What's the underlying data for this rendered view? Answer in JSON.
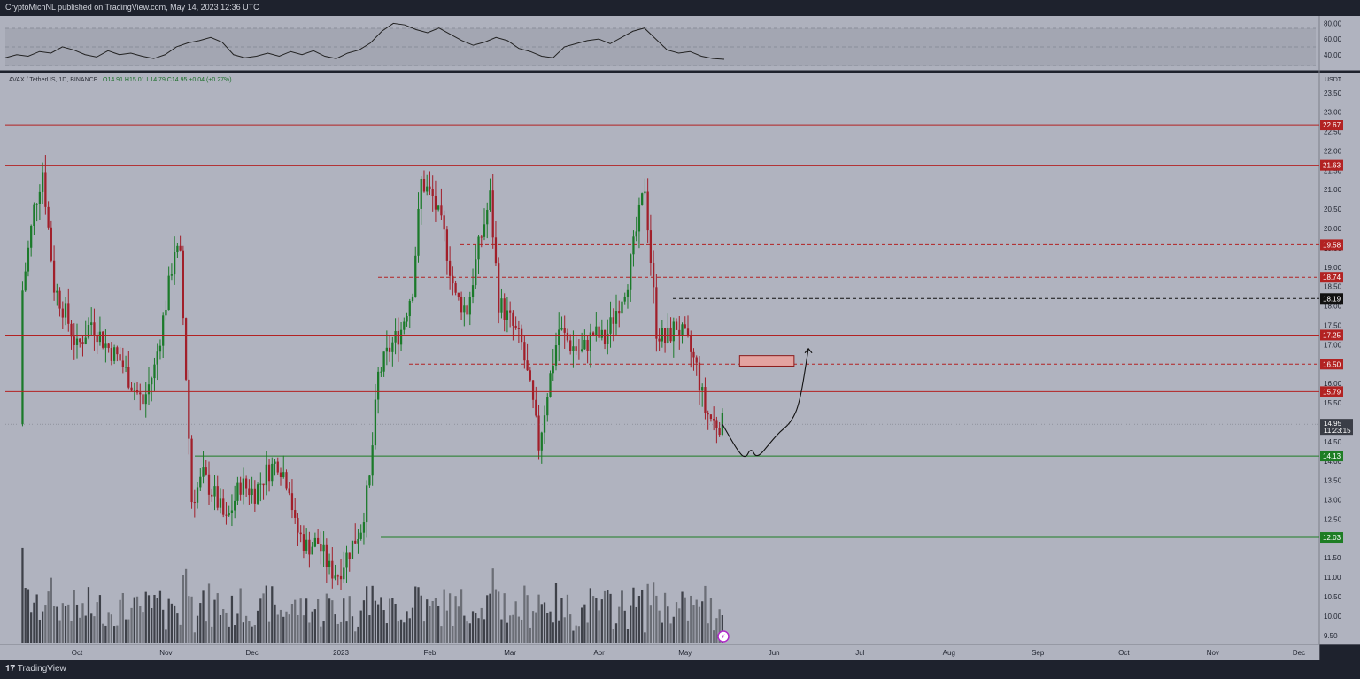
{
  "header": {
    "published": "CryptoMichNL published on TradingView.com, May 14, 2023 12:36 UTC"
  },
  "legend": {
    "symbol": "AVAX / TetherUS, 1D, BINANCE",
    "ohlc": "O14.91 H15.01 L14.79 C14.95 +0.04 (+0.27%)"
  },
  "footer": {
    "brand": "TradingView"
  },
  "colors": {
    "background": "#b0b3bf",
    "resistance": "#b22222",
    "support": "#1e7d24",
    "candle_up": "#1b7a2a",
    "candle_down": "#a11f2a",
    "volume": "#4a4d55"
  },
  "chart_data": {
    "type": "candlestick",
    "pair": "AVAX / TetherUS",
    "interval": "1D",
    "exchange": "BINANCE",
    "currency": "USDT",
    "last_price": "14.95",
    "countdown": "11:23:15",
    "ylim": [
      9.25,
      23.9
    ],
    "y_ticks": [
      "23.50",
      "23.00",
      "22.50",
      "22.00",
      "21.50",
      "21.00",
      "20.50",
      "20.00",
      "19.50",
      "19.00",
      "18.50",
      "18.00",
      "17.50",
      "17.00",
      "16.50",
      "16.00",
      "15.50",
      "15.00",
      "14.50",
      "14.00",
      "13.50",
      "13.00",
      "12.50",
      "12.00",
      "11.50",
      "11.00",
      "10.50",
      "10.00",
      "9.50"
    ],
    "x_labels": [
      "Oct",
      "Nov",
      "Dec",
      "2023",
      "Feb",
      "Mar",
      "Apr",
      "May",
      "Jun",
      "Jul",
      "Aug",
      "Sep",
      "Oct",
      "Nov",
      "Dec"
    ],
    "levels": [
      {
        "label": "22.67",
        "value": 22.67,
        "style": "solid",
        "color": "#b22222"
      },
      {
        "label": "21.63",
        "value": 21.63,
        "style": "solid",
        "color": "#b22222"
      },
      {
        "label": "19.58",
        "value": 19.58,
        "style": "dashed",
        "color": "#b22222"
      },
      {
        "label": "18.74",
        "value": 18.74,
        "style": "dashed",
        "color": "#b22222"
      },
      {
        "label": "18.19",
        "value": 18.19,
        "style": "dashed",
        "color": "#111111"
      },
      {
        "label": "17.25",
        "value": 17.25,
        "style": "solid",
        "color": "#b22222"
      },
      {
        "label": "16.50",
        "value": 16.5,
        "style": "dashed",
        "color": "#b22222"
      },
      {
        "label": "15.79",
        "value": 15.79,
        "style": "solid",
        "color": "#b22222"
      },
      {
        "label": "14.13",
        "value": 14.13,
        "style": "solid",
        "color": "#1e7d24"
      },
      {
        "label": "12.03",
        "value": 12.03,
        "style": "solid",
        "color": "#1e7d24"
      }
    ],
    "close_path": [
      {
        "date": "2022-09-12",
        "close": 18.4
      },
      {
        "date": "2022-09-16",
        "close": 20.5
      },
      {
        "date": "2022-09-19",
        "close": 21.5
      },
      {
        "date": "2022-09-23",
        "close": 18.5
      },
      {
        "date": "2022-09-27",
        "close": 17.8
      },
      {
        "date": "2022-10-01",
        "close": 16.9
      },
      {
        "date": "2022-10-06",
        "close": 17.6
      },
      {
        "date": "2022-10-11",
        "close": 17.0
      },
      {
        "date": "2022-10-16",
        "close": 16.6
      },
      {
        "date": "2022-10-20",
        "close": 16.0
      },
      {
        "date": "2022-10-24",
        "close": 15.5
      },
      {
        "date": "2022-10-28",
        "close": 16.4
      },
      {
        "date": "2022-11-02",
        "close": 18.5
      },
      {
        "date": "2022-11-04",
        "close": 19.5
      },
      {
        "date": "2022-11-06",
        "close": 19.2
      },
      {
        "date": "2022-11-08",
        "close": 16.2
      },
      {
        "date": "2022-11-10",
        "close": 13.0
      },
      {
        "date": "2022-11-14",
        "close": 13.6
      },
      {
        "date": "2022-11-18",
        "close": 13.1
      },
      {
        "date": "2022-11-22",
        "close": 12.4
      },
      {
        "date": "2022-11-27",
        "close": 13.4
      },
      {
        "date": "2022-12-02",
        "close": 13.2
      },
      {
        "date": "2022-12-06",
        "close": 13.7
      },
      {
        "date": "2022-12-10",
        "close": 14.0
      },
      {
        "date": "2022-12-14",
        "close": 13.4
      },
      {
        "date": "2022-12-16",
        "close": 12.3
      },
      {
        "date": "2022-12-20",
        "close": 11.8
      },
      {
        "date": "2022-12-24",
        "close": 11.9
      },
      {
        "date": "2022-12-28",
        "close": 11.2
      },
      {
        "date": "2022-12-31",
        "close": 11.1
      },
      {
        "date": "2023-01-04",
        "close": 11.7
      },
      {
        "date": "2023-01-08",
        "close": 12.3
      },
      {
        "date": "2023-01-11",
        "close": 13.5
      },
      {
        "date": "2023-01-14",
        "close": 16.2
      },
      {
        "date": "2023-01-18",
        "close": 16.9
      },
      {
        "date": "2023-01-22",
        "close": 17.4
      },
      {
        "date": "2023-01-26",
        "close": 18.5
      },
      {
        "date": "2023-01-29",
        "close": 21.2
      },
      {
        "date": "2023-02-02",
        "close": 20.8
      },
      {
        "date": "2023-02-06",
        "close": 19.8
      },
      {
        "date": "2023-02-10",
        "close": 18.2
      },
      {
        "date": "2023-02-14",
        "close": 17.9
      },
      {
        "date": "2023-02-18",
        "close": 19.5
      },
      {
        "date": "2023-02-22",
        "close": 20.8
      },
      {
        "date": "2023-02-25",
        "close": 18.1
      },
      {
        "date": "2023-03-01",
        "close": 17.6
      },
      {
        "date": "2023-03-05",
        "close": 17.0
      },
      {
        "date": "2023-03-09",
        "close": 15.4
      },
      {
        "date": "2023-03-11",
        "close": 14.4
      },
      {
        "date": "2023-03-14",
        "close": 15.8
      },
      {
        "date": "2023-03-18",
        "close": 17.4
      },
      {
        "date": "2023-03-22",
        "close": 17.0
      },
      {
        "date": "2023-03-26",
        "close": 16.8
      },
      {
        "date": "2023-03-30",
        "close": 17.3
      },
      {
        "date": "2023-04-03",
        "close": 17.1
      },
      {
        "date": "2023-04-07",
        "close": 17.9
      },
      {
        "date": "2023-04-11",
        "close": 18.7
      },
      {
        "date": "2023-04-14",
        "close": 19.9
      },
      {
        "date": "2023-04-17",
        "close": 21.1
      },
      {
        "date": "2023-04-19",
        "close": 19.2
      },
      {
        "date": "2023-04-21",
        "close": 17.4
      },
      {
        "date": "2023-04-24",
        "close": 17.1
      },
      {
        "date": "2023-04-28",
        "close": 17.5
      },
      {
        "date": "2023-05-02",
        "close": 17.0
      },
      {
        "date": "2023-05-05",
        "close": 16.4
      },
      {
        "date": "2023-05-08",
        "close": 15.3
      },
      {
        "date": "2023-05-11",
        "close": 15.0
      },
      {
        "date": "2023-05-14",
        "close": 14.95
      }
    ],
    "projection_path": [
      {
        "date": "2023-05-14",
        "close": 14.95
      },
      {
        "date": "2023-05-19",
        "close": 14.3
      },
      {
        "date": "2023-05-22",
        "close": 14.05
      },
      {
        "date": "2023-05-24",
        "close": 14.35
      },
      {
        "date": "2023-05-26",
        "close": 14.05
      },
      {
        "date": "2023-05-31",
        "close": 14.5
      },
      {
        "date": "2023-06-03",
        "close": 14.75
      },
      {
        "date": "2023-06-07",
        "close": 15.0
      },
      {
        "date": "2023-06-10",
        "close": 15.5
      },
      {
        "date": "2023-06-13",
        "close": 16.9
      }
    ],
    "target_zone": {
      "start": "2023-05-20",
      "end": "2023-06-08",
      "low": 16.45,
      "high": 16.72
    },
    "rsi": {
      "ticks": [
        "80.00",
        "60.00",
        "40.00"
      ],
      "ylim": [
        25,
        85
      ],
      "values": [
        36,
        40,
        38,
        44,
        42,
        50,
        46,
        40,
        37,
        45,
        40,
        42,
        38,
        35,
        40,
        50,
        55,
        58,
        62,
        56,
        40,
        36,
        38,
        42,
        38,
        44,
        40,
        45,
        38,
        35,
        42,
        46,
        55,
        70,
        80,
        78,
        72,
        68,
        74,
        66,
        58,
        52,
        56,
        62,
        58,
        48,
        44,
        38,
        36,
        50,
        54,
        58,
        60,
        54,
        62,
        70,
        74,
        60,
        46,
        42,
        44,
        38,
        35,
        34
      ]
    }
  }
}
